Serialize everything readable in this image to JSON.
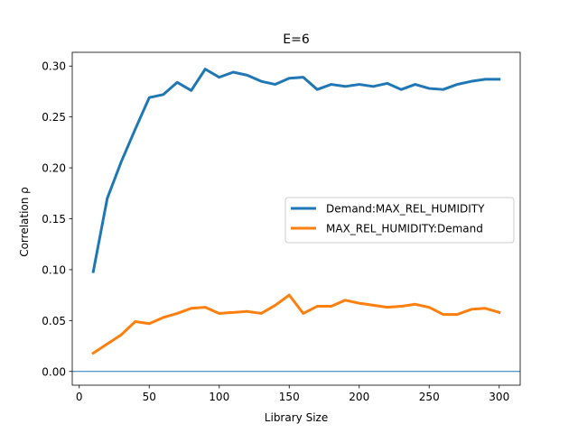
{
  "chart_data": {
    "type": "line",
    "title": "E=6",
    "xlabel": "Library Size",
    "ylabel": "Correlation ρ",
    "xlim": [
      -5,
      315
    ],
    "ylim": [
      -0.0135,
      0.3135
    ],
    "xticks": [
      0,
      50,
      100,
      150,
      200,
      250,
      300
    ],
    "yticks": [
      0.0,
      0.05,
      0.1,
      0.15,
      0.2,
      0.25,
      0.3
    ],
    "ytick_labels": [
      "0.00",
      "0.05",
      "0.10",
      "0.15",
      "0.20",
      "0.25",
      "0.30"
    ],
    "grid": false,
    "legend_position": "center-right",
    "hline": {
      "y": 0.0,
      "color": "#1f77b4"
    },
    "x": [
      10,
      20,
      30,
      40,
      50,
      60,
      70,
      80,
      90,
      100,
      110,
      120,
      130,
      140,
      150,
      160,
      170,
      180,
      190,
      200,
      210,
      220,
      230,
      240,
      250,
      260,
      270,
      280,
      290,
      300
    ],
    "series": [
      {
        "name": "Demand:MAX_REL_HUMIDITY",
        "color": "#1f77b4",
        "values": [
          0.098,
          0.17,
          0.206,
          0.238,
          0.269,
          0.272,
          0.284,
          0.276,
          0.297,
          0.289,
          0.294,
          0.291,
          0.285,
          0.282,
          0.288,
          0.289,
          0.277,
          0.282,
          0.28,
          0.282,
          0.28,
          0.283,
          0.277,
          0.282,
          0.278,
          0.277,
          0.282,
          0.285,
          0.287,
          0.287
        ]
      },
      {
        "name": "MAX_REL_HUMIDITY:Demand",
        "color": "#ff7f0e",
        "values": [
          0.018,
          0.027,
          0.036,
          0.049,
          0.047,
          0.053,
          0.057,
          0.062,
          0.063,
          0.057,
          0.058,
          0.059,
          0.057,
          0.065,
          0.075,
          0.057,
          0.064,
          0.064,
          0.07,
          0.067,
          0.065,
          0.063,
          0.064,
          0.066,
          0.063,
          0.056,
          0.056,
          0.061,
          0.062,
          0.058
        ]
      }
    ]
  }
}
